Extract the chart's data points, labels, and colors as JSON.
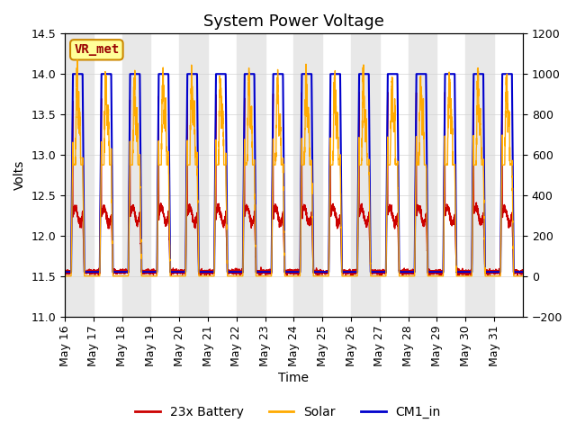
{
  "title": "System Power Voltage",
  "xlabel": "Time",
  "ylabel_left": "Volts",
  "ylim_left": [
    11.0,
    14.5
  ],
  "ylim_right": [
    -200,
    1200
  ],
  "yticks_left": [
    11.0,
    11.5,
    12.0,
    12.5,
    13.0,
    13.5,
    14.0,
    14.5
  ],
  "yticks_right": [
    -200,
    0,
    200,
    400,
    600,
    800,
    1000,
    1200
  ],
  "x_tick_positions": [
    0,
    1,
    2,
    3,
    4,
    5,
    6,
    7,
    8,
    9,
    10,
    11,
    12,
    13,
    14,
    15
  ],
  "x_tick_labels": [
    "May 16",
    "May 17",
    "May 18",
    "May 19",
    "May 20",
    "May 21",
    "May 22",
    "May 23",
    "May 24",
    "May 25",
    "May 26",
    "May 27",
    "May 28",
    "May 29",
    "May 30",
    "May 31"
  ],
  "n_days": 16,
  "battery_color": "#cc0000",
  "solar_color": "#ffaa00",
  "cm1_color": "#0000cc",
  "stripe_color": "#e8e8e8",
  "legend_labels": [
    "23x Battery",
    "Solar",
    "CM1_in"
  ],
  "annotation_text": "VR_met",
  "annotation_bg": "#ffff99",
  "annotation_border": "#cc8800",
  "title_fontsize": 13,
  "axis_fontsize": 10,
  "tick_fontsize": 9,
  "legend_fontsize": 10
}
